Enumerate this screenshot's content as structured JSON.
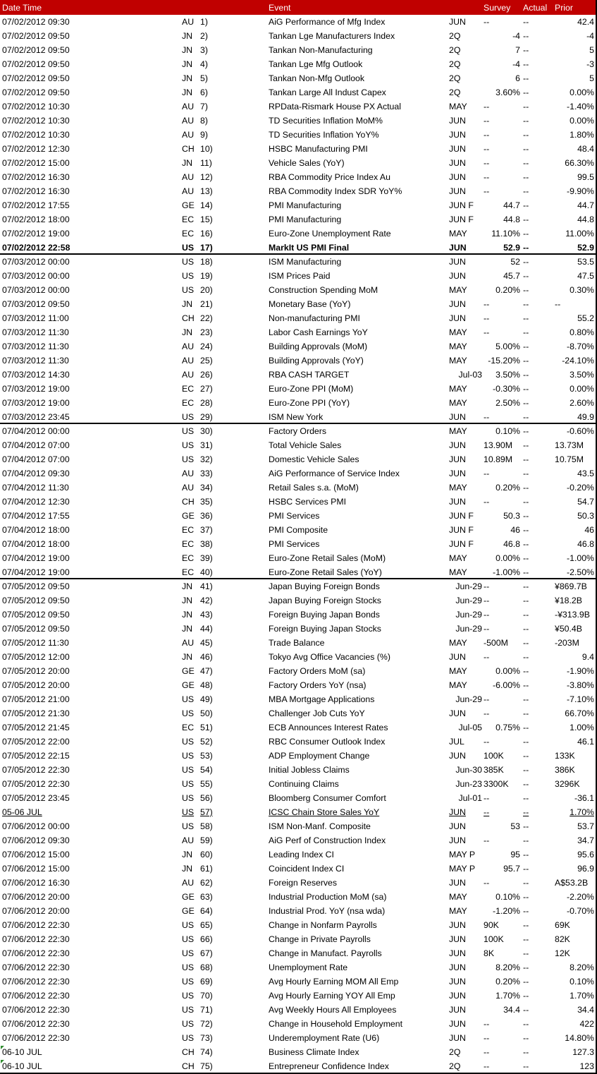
{
  "header": {
    "datetime": "Date Time",
    "event": "Event",
    "survey": "Survey",
    "actual": "Actual",
    "prior": "Prior"
  },
  "colors": {
    "header_bg": "#c00000",
    "header_text": "#ffffff",
    "error_marker": "#2e8b2e"
  },
  "rows": [
    [
      "07/02/2012 09:30",
      "AU",
      "1)",
      "AiG Performance of Mfg Index",
      "JUN",
      "--",
      "--",
      "42.4"
    ],
    [
      "07/02/2012 09:50",
      "JN",
      "2)",
      "Tankan Lge Manufacturers Index",
      "2Q",
      "-4",
      "--",
      "-4"
    ],
    [
      "07/02/2012 09:50",
      "JN",
      "3)",
      "Tankan Non-Manufacturing",
      "2Q",
      "7",
      "--",
      "5"
    ],
    [
      "07/02/2012 09:50",
      "JN",
      "4)",
      "Tankan Lge Mfg Outlook",
      "2Q",
      "-4",
      "--",
      "-3"
    ],
    [
      "07/02/2012 09:50",
      "JN",
      "5)",
      "Tankan Non-Mfg Outlook",
      "2Q",
      "6",
      "--",
      "5"
    ],
    [
      "07/02/2012 09:50",
      "JN",
      "6)",
      "Tankan Large All Indust Capex",
      "2Q",
      "3.60%",
      "--",
      "0.00%"
    ],
    [
      "07/02/2012 10:30",
      "AU",
      "7)",
      "RPData-Rismark House PX Actual",
      "MAY",
      "--",
      "--",
      "-1.40%"
    ],
    [
      "07/02/2012 10:30",
      "AU",
      "8)",
      "TD Securities Inflation MoM%",
      "JUN",
      "--",
      "--",
      "0.00%"
    ],
    [
      "07/02/2012 10:30",
      "AU",
      "9)",
      "TD Securities Inflation YoY%",
      "JUN",
      "--",
      "--",
      "1.80%"
    ],
    [
      "07/02/2012 12:30",
      "CH",
      "10)",
      "HSBC Manufacturing PMI",
      "JUN",
      "--",
      "--",
      "48.4"
    ],
    [
      "07/02/2012 15:00",
      "JN",
      "11)",
      "Vehicle Sales (YoY)",
      "JUN",
      "--",
      "--",
      "66.30%"
    ],
    [
      "07/02/2012 16:30",
      "AU",
      "12)",
      "RBA Commodity Price Index Au",
      "JUN",
      "--",
      "--",
      "99.5"
    ],
    [
      "07/02/2012 16:30",
      "AU",
      "13)",
      "RBA Commodity Index SDR YoY%",
      "JUN",
      "--",
      "--",
      "-9.90%"
    ],
    [
      "07/02/2012 17:55",
      "GE",
      "14)",
      "PMI Manufacturing",
      "JUN F",
      "44.7",
      "--",
      "44.7"
    ],
    [
      "07/02/2012 18:00",
      "EC",
      "15)",
      "PMI Manufacturing",
      "JUN F",
      "44.8",
      "--",
      "44.8"
    ],
    [
      "07/02/2012 19:00",
      "EC",
      "16)",
      "Euro-Zone Unemployment Rate",
      "MAY",
      "11.10%",
      "--",
      "11.00%"
    ],
    [
      "07/02/2012 22:58",
      "US",
      "17)",
      "MarkIt US PMI Final",
      "JUN",
      "52.9",
      "--",
      "52.9"
    ],
    [
      "07/03/2012 00:00",
      "US",
      "18)",
      "ISM Manufacturing",
      "JUN",
      "52",
      "--",
      "53.5"
    ],
    [
      "07/03/2012 00:00",
      "US",
      "19)",
      "ISM Prices Paid",
      "JUN",
      "45.7",
      "--",
      "47.5"
    ],
    [
      "07/03/2012 00:00",
      "US",
      "20)",
      "Construction Spending MoM",
      "MAY",
      "0.20%",
      "--",
      "0.30%"
    ],
    [
      "07/03/2012 09:50",
      "JN",
      "21)",
      "Monetary Base (YoY)",
      "JUN",
      "--",
      "--",
      "--"
    ],
    [
      "07/03/2012 11:00",
      "CH",
      "22)",
      "Non-manufacturing PMI",
      "JUN",
      "--",
      "--",
      "55.2"
    ],
    [
      "07/03/2012 11:30",
      "JN",
      "23)",
      "Labor Cash Earnings YoY",
      "MAY",
      "--",
      "--",
      "0.80%"
    ],
    [
      "07/03/2012 11:30",
      "AU",
      "24)",
      "Building Approvals (MoM)",
      "MAY",
      "5.00%",
      "--",
      "-8.70%"
    ],
    [
      "07/03/2012 11:30",
      "AU",
      "25)",
      "Building Approvals (YoY)",
      "MAY",
      "-15.20%",
      "--",
      "-24.10%"
    ],
    [
      "07/03/2012 14:30",
      "AU",
      "26)",
      "RBA CASH TARGET",
      "Jul-03",
      "3.50%",
      "--",
      "3.50%"
    ],
    [
      "07/03/2012 19:00",
      "EC",
      "27)",
      "Euro-Zone PPI (MoM)",
      "MAY",
      "-0.30%",
      "--",
      "0.00%"
    ],
    [
      "07/03/2012 19:00",
      "EC",
      "28)",
      "Euro-Zone PPI (YoY)",
      "MAY",
      "2.50%",
      "--",
      "2.60%"
    ],
    [
      "07/03/2012 23:45",
      "US",
      "29)",
      "ISM New York",
      "JUN",
      "--",
      "--",
      "49.9"
    ],
    [
      "07/04/2012 00:00",
      "US",
      "30)",
      "Factory Orders",
      "MAY",
      "0.10%",
      "--",
      "-0.60%"
    ],
    [
      "07/04/2012 07:00",
      "US",
      "31)",
      "Total Vehicle Sales",
      "JUN",
      "13.90M",
      "--",
      "13.73M"
    ],
    [
      "07/04/2012 07:00",
      "US",
      "32)",
      "Domestic Vehicle Sales",
      "JUN",
      "10.89M",
      "--",
      "10.75M"
    ],
    [
      "07/04/2012 09:30",
      "AU",
      "33)",
      "AiG Performance of Service Index",
      "JUN",
      "--",
      "--",
      "43.5"
    ],
    [
      "07/04/2012 11:30",
      "AU",
      "34)",
      "Retail Sales s.a. (MoM)",
      "MAY",
      "0.20%",
      "--",
      "-0.20%"
    ],
    [
      "07/04/2012 12:30",
      "CH",
      "35)",
      "HSBC Services PMI",
      "JUN",
      "--",
      "--",
      "54.7"
    ],
    [
      "07/04/2012 17:55",
      "GE",
      "36)",
      "PMI Services",
      "JUN F",
      "50.3",
      "--",
      "50.3"
    ],
    [
      "07/04/2012 18:00",
      "EC",
      "37)",
      "PMI Composite",
      "JUN F",
      "46",
      "--",
      "46"
    ],
    [
      "07/04/2012 18:00",
      "EC",
      "38)",
      "PMI Services",
      "JUN F",
      "46.8",
      "--",
      "46.8"
    ],
    [
      "07/04/2012 19:00",
      "EC",
      "39)",
      "Euro-Zone Retail Sales (MoM)",
      "MAY",
      "0.00%",
      "--",
      "-1.00%"
    ],
    [
      "07/04/2012 19:00",
      "EC",
      "40)",
      "Euro-Zone Retail Sales (YoY)",
      "MAY",
      "-1.00%",
      "--",
      "-2.50%"
    ],
    [
      "07/05/2012 09:50",
      "JN",
      "41)",
      "Japan Buying Foreign Bonds",
      "Jun-29",
      "--",
      "--",
      "¥869.7B"
    ],
    [
      "07/05/2012 09:50",
      "JN",
      "42)",
      "Japan Buying Foreign Stocks",
      "Jun-29",
      "--",
      "--",
      "¥18.2B"
    ],
    [
      "07/05/2012 09:50",
      "JN",
      "43)",
      "Foreign Buying Japan Bonds",
      "Jun-29",
      "--",
      "--",
      "-¥313.9B"
    ],
    [
      "07/05/2012 09:50",
      "JN",
      "44)",
      "Foreign Buying Japan Stocks",
      "Jun-29",
      "--",
      "--",
      "¥50.4B"
    ],
    [
      "07/05/2012 11:30",
      "AU",
      "45)",
      "Trade Balance",
      "MAY",
      "-500M",
      "--",
      "-203M"
    ],
    [
      "07/05/2012 12:00",
      "JN",
      "46)",
      "Tokyo Avg Office Vacancies (%)",
      "JUN",
      "--",
      "--",
      "9.4"
    ],
    [
      "07/05/2012 20:00",
      "GE",
      "47)",
      "Factory Orders MoM (sa)",
      "MAY",
      "0.00%",
      "--",
      "-1.90%"
    ],
    [
      "07/05/2012 20:00",
      "GE",
      "48)",
      "Factory Orders YoY (nsa)",
      "MAY",
      "-6.00%",
      "--",
      "-3.80%"
    ],
    [
      "07/05/2012 21:00",
      "US",
      "49)",
      "MBA Mortgage Applications",
      "Jun-29",
      "--",
      "--",
      "-7.10%"
    ],
    [
      "07/05/2012 21:30",
      "US",
      "50)",
      "Challenger Job Cuts YoY",
      "JUN",
      "--",
      "--",
      "66.70%"
    ],
    [
      "07/05/2012 21:45",
      "EC",
      "51)",
      "ECB Announces Interest Rates",
      "Jul-05",
      "0.75%",
      "--",
      "1.00%"
    ],
    [
      "07/05/2012 22:00",
      "US",
      "52)",
      "RBC Consumer Outlook Index",
      "JUL",
      "--",
      "--",
      "46.1"
    ],
    [
      "07/05/2012 22:15",
      "US",
      "53)",
      "ADP Employment Change",
      "JUN",
      "100K",
      "--",
      "133K"
    ],
    [
      "07/05/2012 22:30",
      "US",
      "54)",
      "Initial Jobless Claims",
      "Jun-30",
      "385K",
      "--",
      "386K"
    ],
    [
      "07/05/2012 22:30",
      "US",
      "55)",
      "Continuing Claims",
      "Jun-23",
      "3300K",
      "--",
      "3296K"
    ],
    [
      "07/05/2012 23:45",
      "US",
      "56)",
      "Bloomberg Consumer Comfort",
      "Jul-01",
      "--",
      "--",
      "-36.1"
    ],
    [
      "05-06 JUL",
      "US",
      "57)",
      "ICSC Chain Store Sales YoY",
      "JUN",
      "--",
      "--",
      "1.70%"
    ],
    [
      "07/06/2012 00:00",
      "US",
      "58)",
      "ISM Non-Manf. Composite",
      "JUN",
      "53",
      "--",
      "53.7"
    ],
    [
      "07/06/2012 09:30",
      "AU",
      "59)",
      "AiG Perf of Construction Index",
      "JUN",
      "--",
      "--",
      "34.7"
    ],
    [
      "07/06/2012 15:00",
      "JN",
      "60)",
      "Leading Index CI",
      "MAY P",
      "95",
      "--",
      "95.6"
    ],
    [
      "07/06/2012 15:00",
      "JN",
      "61)",
      "Coincident Index CI",
      "MAY P",
      "95.7",
      "--",
      "96.9"
    ],
    [
      "07/06/2012 16:30",
      "AU",
      "62)",
      "Foreign Reserves",
      "JUN",
      "--",
      "--",
      "A$53.2B"
    ],
    [
      "07/06/2012 20:00",
      "GE",
      "63)",
      "Industrial Production MoM (sa)",
      "MAY",
      "0.10%",
      "--",
      "-2.20%"
    ],
    [
      "07/06/2012 20:00",
      "GE",
      "64)",
      "Industrial Prod. YoY (nsa wda)",
      "MAY",
      "-1.20%",
      "--",
      "-0.70%"
    ],
    [
      "07/06/2012 22:30",
      "US",
      "65)",
      "Change in Nonfarm Payrolls",
      "JUN",
      "90K",
      "--",
      "69K"
    ],
    [
      "07/06/2012 22:30",
      "US",
      "66)",
      "Change in Private Payrolls",
      "JUN",
      "100K",
      "--",
      "82K"
    ],
    [
      "07/06/2012 22:30",
      "US",
      "67)",
      "Change in Manufact. Payrolls",
      "JUN",
      "8K",
      "--",
      "12K"
    ],
    [
      "07/06/2012 22:30",
      "US",
      "68)",
      "Unemployment Rate",
      "JUN",
      "8.20%",
      "--",
      "8.20%"
    ],
    [
      "07/06/2012 22:30",
      "US",
      "69)",
      "Avg Hourly Earning MOM All Emp",
      "JUN",
      "0.20%",
      "--",
      "0.10%"
    ],
    [
      "07/06/2012 22:30",
      "US",
      "70)",
      "Avg Hourly Earning YOY All Emp",
      "JUN",
      "1.70%",
      "--",
      "1.70%"
    ],
    [
      "07/06/2012 22:30",
      "US",
      "71)",
      "Avg Weekly Hours All Employees",
      "JUN",
      "34.4",
      "--",
      "34.4"
    ],
    [
      "07/06/2012 22:30",
      "US",
      "72)",
      "Change in Household Employment",
      "JUN",
      "--",
      "--",
      "422"
    ],
    [
      "07/06/2012 22:30",
      "US",
      "73)",
      "Underemployment Rate (U6)",
      "JUN",
      "--",
      "--",
      "14.80%"
    ],
    [
      "06-10 JUL",
      "CH",
      "74)",
      "Business Climate Index",
      "2Q",
      "--",
      "--",
      "127.3"
    ],
    [
      "06-10 JUL",
      "CH",
      "75)",
      "Entrepreneur Confidence Index",
      "2Q",
      "--",
      "--",
      "123"
    ]
  ]
}
